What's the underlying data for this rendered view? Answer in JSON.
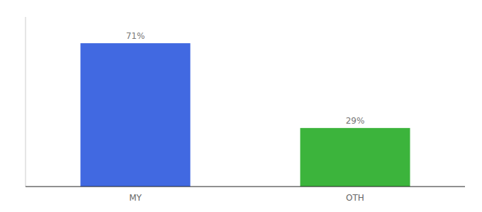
{
  "chart_data": {
    "type": "bar",
    "categories": [
      "MY",
      "OTH"
    ],
    "values": [
      71,
      29
    ],
    "value_labels": [
      "71%",
      "29%"
    ],
    "colors": [
      "#4169E1",
      "#3CB43C"
    ],
    "ylim": [
      0,
      84
    ],
    "grid": false,
    "data_labels": true,
    "tick_labels": "x"
  }
}
